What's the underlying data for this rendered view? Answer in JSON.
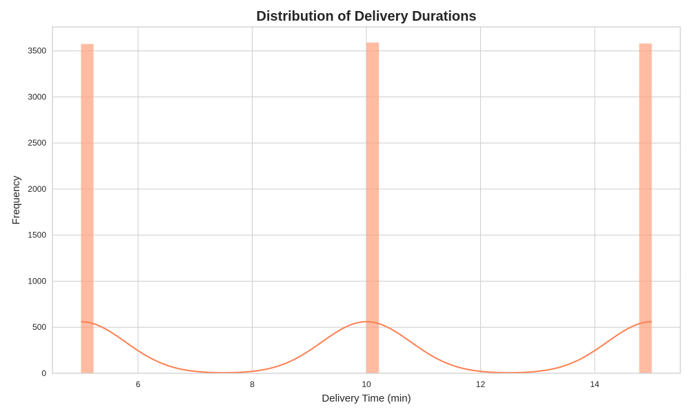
{
  "chart_data": {
    "type": "bar",
    "title": "Distribution of Delivery Durations",
    "xlabel": "Delivery Time (min)",
    "ylabel": "Frequency",
    "xlim": [
      4.5,
      15.5
    ],
    "ylim": [
      0,
      3760
    ],
    "xticks": [
      6,
      8,
      10,
      12,
      14
    ],
    "yticks": [
      0,
      500,
      1000,
      1500,
      2000,
      2500,
      3000,
      3500
    ],
    "grid": true,
    "bar_color": "#ffa07a",
    "kde_color": "#ff7f50",
    "bins": [
      {
        "x0": 5.0,
        "x1": 5.22,
        "count": 3575
      },
      {
        "x0": 10.0,
        "x1": 10.22,
        "count": 3590
      },
      {
        "x0": 14.78,
        "x1": 15.0,
        "count": 3580
      }
    ],
    "kde": {
      "peaks": [
        5.0,
        10.0,
        15.0
      ],
      "peak_height": 560,
      "bandwidth": 0.78,
      "x_range": [
        5.0,
        15.0
      ]
    }
  }
}
